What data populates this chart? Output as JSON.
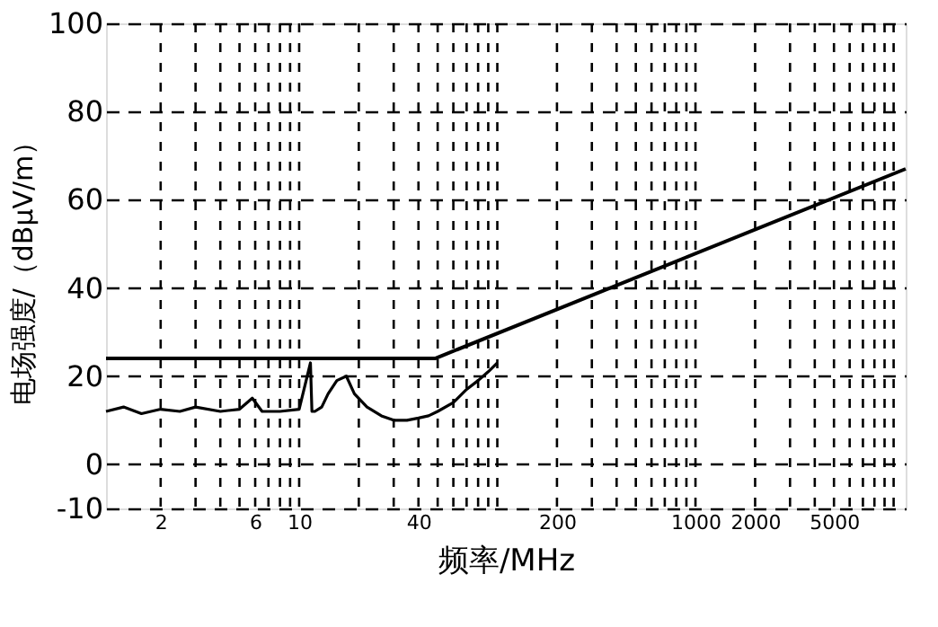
{
  "chart_data": {
    "type": "line",
    "xlabel": "频率/MHz",
    "ylabel": "电场强度/（dBμV/m）",
    "log": "x",
    "xlim": [
      1.06,
      11500
    ],
    "ylim": [
      -10,
      100
    ],
    "xticks": [
      2,
      6,
      10,
      40,
      200,
      1000,
      2000,
      5000
    ],
    "yticks": [
      -10,
      0,
      20,
      40,
      60,
      80,
      100
    ],
    "grid": true,
    "line_style": "solid",
    "marker": "none",
    "series": [
      {
        "color": "#000000",
        "x": [
          1.06,
          1.3,
          1.6,
          2,
          2.5,
          3,
          4,
          5,
          5.8,
          6.5,
          8,
          10,
          11.4,
          11.6,
          12,
          13,
          14,
          15.5,
          17.3,
          19,
          22,
          26,
          30,
          35,
          40,
          45,
          50,
          60,
          70,
          80,
          90,
          100
        ],
        "values": [
          12,
          13,
          11.5,
          12.5,
          12,
          13,
          12,
          12.5,
          15,
          12,
          12,
          12.5,
          23,
          12,
          12,
          13,
          16,
          19,
          20,
          16,
          13,
          11,
          10,
          10,
          10.5,
          11,
          12,
          14,
          17,
          19,
          21,
          23
        ]
      },
      {
        "color": "#000000",
        "x": [
          1.06,
          48.5,
          11500
        ],
        "values": [
          24,
          24,
          67
        ]
      }
    ]
  }
}
